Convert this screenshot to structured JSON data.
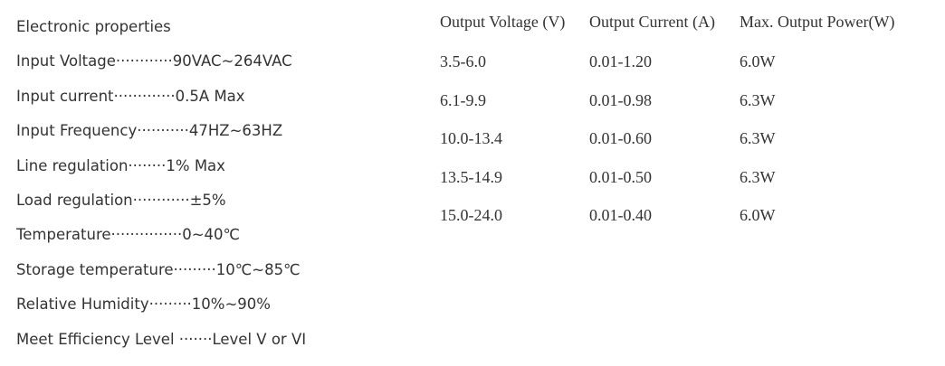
{
  "specs": {
    "title": "Electronic properties",
    "items": [
      "Input Voltage············90VAC~264VAC",
      "Input current·············0.5A Max",
      "Input Frequency···········47HZ~63HZ",
      "Line regulation········1% Max",
      "Load regulation············±5%",
      "Temperature···············0~40℃",
      "Storage temperature·········10℃~85℃",
      "Relative Humidity·········10%~90%",
      "Meet Efficiency Level ·······Level V or VI"
    ]
  },
  "table": {
    "header": [
      "Output Voltage (V)",
      "Output Current (A)",
      "Max. Output Power(W)"
    ],
    "rows": [
      [
        "3.5-6.0",
        "0.01-1.20",
        "6.0W"
      ],
      [
        "6.1-9.9",
        "0.01-0.98",
        "6.3W"
      ],
      [
        "10.0-13.4",
        "0.01-0.60",
        "6.3W"
      ],
      [
        "13.5-14.9",
        "0.01-0.50",
        "6.3W"
      ],
      [
        "15.0-24.0",
        "0.01-0.40",
        "6.0W"
      ]
    ]
  }
}
